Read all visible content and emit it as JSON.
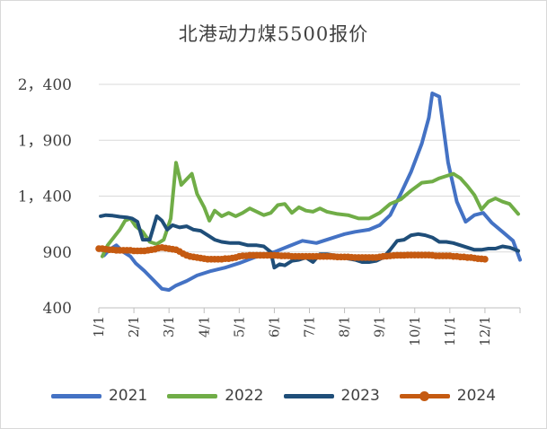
{
  "chart_data": {
    "type": "line",
    "title": "北港动力煤5500报价",
    "xlabel": "",
    "ylabel": "",
    "ylim": [
      400,
      2400
    ],
    "yticks": [
      400,
      900,
      1400,
      1900,
      2400
    ],
    "ytick_labels": [
      "400",
      "900",
      "1，400",
      "1，900",
      "2，400"
    ],
    "x_ticks": [
      "1/1",
      "2/1",
      "3/1",
      "4/1",
      "5/1",
      "6/1",
      "7/1",
      "8/1",
      "9/1",
      "10/1",
      "11/1",
      "12/1"
    ],
    "grid": "horizontal",
    "legend_position": "bottom",
    "x_unit": "month (1 = Jan 1)",
    "series": [
      {
        "name": "2021",
        "color": "#4472C4",
        "markers": false,
        "x": [
          1.15,
          1.3,
          1.5,
          1.7,
          1.9,
          2.05,
          2.3,
          2.55,
          2.8,
          3.0,
          3.2,
          3.5,
          3.8,
          4.2,
          4.6,
          5.0,
          5.5,
          6.0,
          6.4,
          6.8,
          7.2,
          7.6,
          8.0,
          8.3,
          8.7,
          9.0,
          9.3,
          9.6,
          9.9,
          10.2,
          10.4,
          10.5,
          10.7,
          10.95,
          11.2,
          11.45,
          11.7,
          11.95,
          12.2,
          12.5,
          12.8,
          13.0
        ],
        "y": [
          870,
          920,
          960,
          900,
          860,
          800,
          730,
          650,
          570,
          560,
          600,
          640,
          690,
          730,
          760,
          800,
          860,
          900,
          950,
          1000,
          980,
          1020,
          1060,
          1080,
          1100,
          1140,
          1230,
          1420,
          1620,
          1870,
          2100,
          2320,
          2290,
          1700,
          1350,
          1170,
          1230,
          1250,
          1160,
          1080,
          1000,
          830
        ]
      },
      {
        "name": "2022",
        "color": "#70AD47",
        "markers": false,
        "x": [
          1.1,
          1.25,
          1.45,
          1.6,
          1.75,
          1.9,
          2.05,
          2.25,
          2.45,
          2.65,
          2.85,
          3.05,
          3.2,
          3.35,
          3.5,
          3.65,
          3.8,
          4.0,
          4.15,
          4.3,
          4.5,
          4.7,
          4.9,
          5.1,
          5.3,
          5.5,
          5.7,
          5.9,
          6.1,
          6.3,
          6.5,
          6.7,
          6.9,
          7.1,
          7.3,
          7.5,
          7.8,
          8.1,
          8.4,
          8.7,
          9.0,
          9.3,
          9.6,
          9.9,
          10.2,
          10.5,
          10.7,
          10.9,
          11.1,
          11.3,
          11.5,
          11.7,
          11.9,
          12.1,
          12.3,
          12.5,
          12.7,
          12.95
        ],
        "y": [
          860,
          960,
          1040,
          1100,
          1180,
          1200,
          1130,
          1080,
          990,
          970,
          1010,
          1200,
          1700,
          1500,
          1550,
          1600,
          1420,
          1300,
          1180,
          1270,
          1220,
          1250,
          1220,
          1250,
          1290,
          1260,
          1230,
          1250,
          1320,
          1330,
          1250,
          1300,
          1270,
          1260,
          1290,
          1260,
          1240,
          1230,
          1200,
          1200,
          1250,
          1330,
          1370,
          1450,
          1520,
          1530,
          1560,
          1580,
          1600,
          1560,
          1490,
          1410,
          1280,
          1350,
          1380,
          1350,
          1330,
          1240
        ]
      },
      {
        "name": "2023",
        "color": "#1F4E79",
        "markers": false,
        "x": [
          1.05,
          1.2,
          1.4,
          1.6,
          1.8,
          1.95,
          2.1,
          2.25,
          2.45,
          2.65,
          2.8,
          2.95,
          3.1,
          3.3,
          3.5,
          3.7,
          3.9,
          4.1,
          4.3,
          4.5,
          4.75,
          5.0,
          5.25,
          5.5,
          5.7,
          5.9,
          6.0,
          6.15,
          6.3,
          6.5,
          6.7,
          6.9,
          7.1,
          7.3,
          7.5,
          7.7,
          7.9,
          8.1,
          8.3,
          8.5,
          8.7,
          8.9,
          9.1,
          9.3,
          9.5,
          9.7,
          9.9,
          10.1,
          10.3,
          10.5,
          10.7,
          10.9,
          11.1,
          11.3,
          11.5,
          11.7,
          11.9,
          12.1,
          12.3,
          12.5,
          12.7,
          12.95
        ],
        "y": [
          1220,
          1230,
          1225,
          1215,
          1210,
          1200,
          1170,
          1010,
          1010,
          1220,
          1180,
          1100,
          1140,
          1120,
          1130,
          1100,
          1090,
          1050,
          1010,
          990,
          980,
          980,
          960,
          960,
          950,
          900,
          760,
          790,
          780,
          820,
          830,
          850,
          810,
          880,
          880,
          870,
          860,
          840,
          830,
          810,
          810,
          820,
          850,
          920,
          1000,
          1010,
          1050,
          1060,
          1050,
          1030,
          990,
          990,
          980,
          960,
          940,
          920,
          920,
          930,
          930,
          950,
          940,
          910
        ]
      },
      {
        "name": "2024",
        "color": "#C55A11",
        "markers": true,
        "x": [
          1.0,
          1.1,
          1.2,
          1.3,
          1.4,
          1.5,
          1.6,
          1.7,
          1.8,
          1.9,
          2.0,
          2.1,
          2.2,
          2.3,
          2.4,
          2.5,
          2.6,
          2.7,
          2.8,
          2.9,
          3.0,
          3.1,
          3.2,
          3.3,
          3.4,
          3.5,
          3.6,
          3.7,
          3.8,
          3.9,
          4.0,
          4.1,
          4.2,
          4.3,
          4.4,
          4.5,
          4.6,
          4.7,
          4.8,
          4.9,
          5.0,
          5.1,
          5.2,
          5.3,
          5.4,
          5.5,
          5.6,
          5.7,
          5.8,
          5.9,
          6.0,
          6.1,
          6.2,
          6.3,
          6.4,
          6.5,
          6.6,
          6.7,
          6.8,
          6.9,
          7.0,
          7.1,
          7.2,
          7.3,
          7.4,
          7.5,
          7.6,
          7.7,
          7.8,
          7.9,
          8.0,
          8.1,
          8.2,
          8.3,
          8.4,
          8.5,
          8.6,
          8.7,
          8.8,
          8.9,
          9.0,
          9.1,
          9.2,
          9.3,
          9.4,
          9.5,
          9.6,
          9.7,
          9.8,
          9.9,
          10.0,
          10.1,
          10.2,
          10.3,
          10.4,
          10.5,
          10.6,
          10.7,
          10.8,
          10.9,
          11.0,
          11.1,
          11.2,
          11.3,
          11.4,
          11.5,
          11.6,
          11.7,
          11.8,
          11.9,
          12.0
        ],
        "y": [
          930,
          930,
          925,
          920,
          920,
          915,
          915,
          915,
          915,
          915,
          910,
          910,
          910,
          910,
          915,
          920,
          925,
          935,
          940,
          935,
          930,
          925,
          920,
          905,
          885,
          870,
          860,
          855,
          850,
          845,
          840,
          835,
          835,
          835,
          835,
          835,
          840,
          840,
          845,
          850,
          860,
          865,
          865,
          870,
          870,
          870,
          870,
          870,
          870,
          870,
          870,
          868,
          865,
          865,
          865,
          860,
          860,
          860,
          860,
          860,
          860,
          860,
          860,
          860,
          860,
          860,
          860,
          858,
          855,
          855,
          855,
          855,
          852,
          850,
          850,
          850,
          850,
          850,
          850,
          850,
          855,
          860,
          862,
          865,
          868,
          870,
          870,
          870,
          872,
          872,
          872,
          872,
          872,
          872,
          872,
          870,
          865,
          865,
          865,
          865,
          865,
          860,
          860,
          855,
          855,
          850,
          850,
          845,
          840,
          838,
          835
        ]
      }
    ]
  }
}
